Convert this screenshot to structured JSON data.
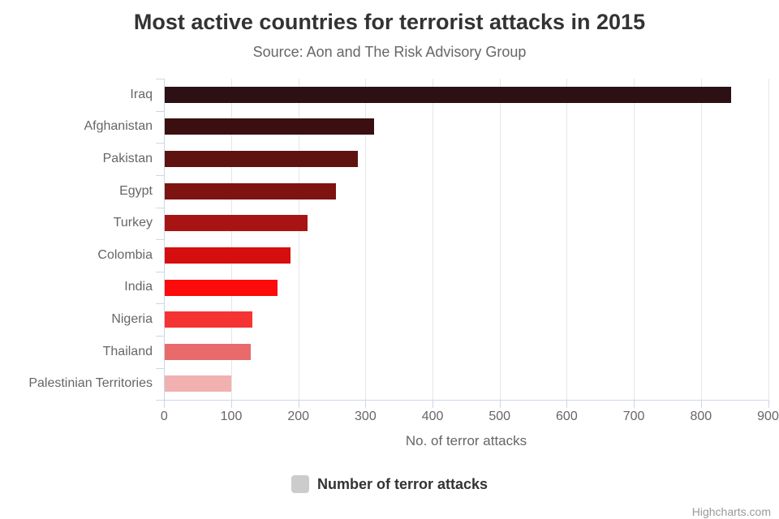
{
  "chart_data": {
    "type": "bar",
    "title": "Most active countries for terrorist attacks in 2015",
    "subtitle": "Source: Aon and The Risk Advisory Group",
    "categories": [
      "Iraq",
      "Afghanistan",
      "Pakistan",
      "Egypt",
      "Turkey",
      "Colombia",
      "India",
      "Nigeria",
      "Thailand",
      "Palestinian Territories"
    ],
    "values": [
      845,
      312,
      288,
      255,
      213,
      188,
      169,
      131,
      129,
      100
    ],
    "bar_colors": [
      "#2c1013",
      "#3b0f10",
      "#5e1311",
      "#7e1312",
      "#a81413",
      "#d40f0e",
      "#fb0b0b",
      "#f63333",
      "#e96a6a",
      "#f1b1b1"
    ],
    "xlabel": "No. of terror attacks",
    "ylabel": "",
    "xlim": [
      0,
      900
    ],
    "x_ticks": [
      0,
      100,
      200,
      300,
      400,
      500,
      600,
      700,
      800,
      900
    ],
    "grid": true,
    "legend_position": "bottom-center",
    "legend": {
      "label": "Number of terror attacks",
      "symbol_color": "#cccccc"
    }
  },
  "credits": "Highcharts.com",
  "colors": {
    "background": "#ffffff",
    "title_text": "#333333",
    "subtitle_text": "#666666",
    "axis_label_text": "#666666",
    "axis_line": "#ccd6eb",
    "gridline": "#e6e6e6",
    "legend_text": "#333333",
    "credits_text": "#999999"
  }
}
